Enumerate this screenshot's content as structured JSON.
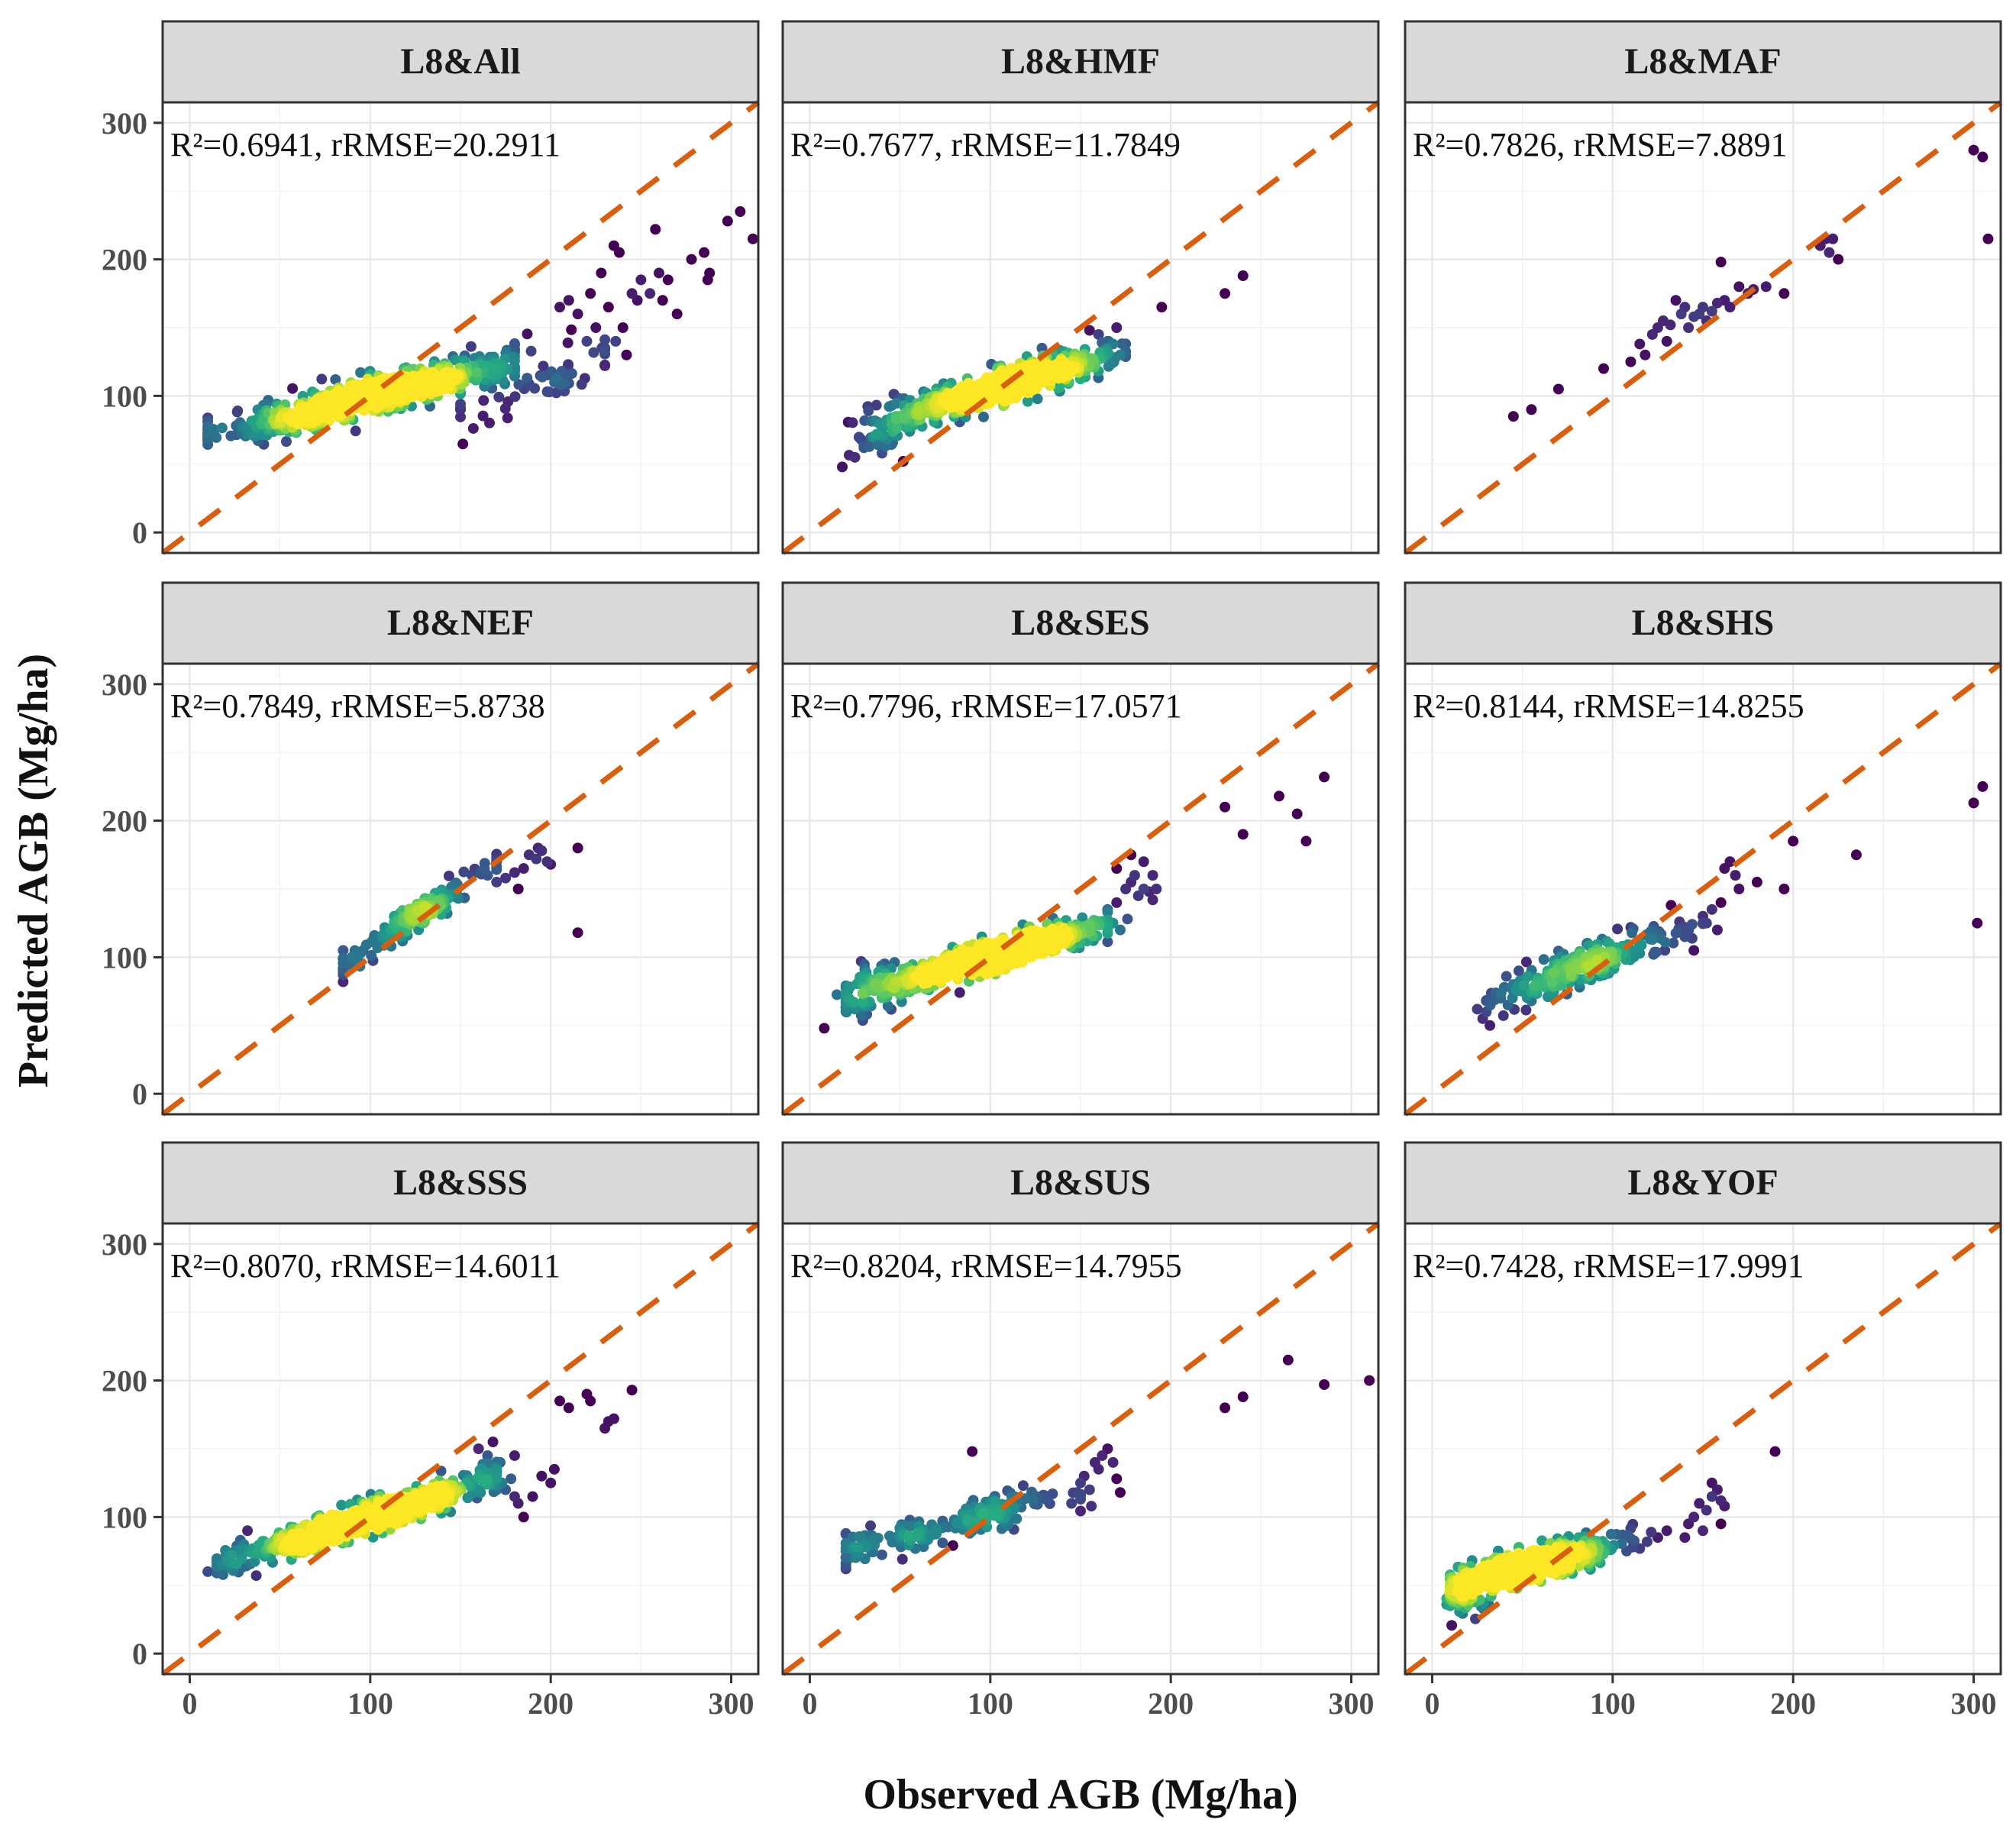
{
  "chart_data": {
    "type": "scatter",
    "xlabel": "Observed AGB (Mg/ha)",
    "ylabel": "Predicted AGB (Mg/ha)",
    "xlim": [
      -15,
      315
    ],
    "ylim": [
      -15,
      315
    ],
    "x_ticks": [
      0,
      100,
      200,
      300
    ],
    "y_ticks": [
      0,
      100,
      200,
      300
    ],
    "grid": true,
    "reference_line": {
      "style": "dashed",
      "color": "#D95F0E",
      "slope": 1,
      "intercept": 0
    },
    "colormap": "viridis (point density)",
    "panels": [
      {
        "title": "L8&All",
        "annotation": "R²=0.6941, rRMSE=20.2911",
        "clusters": [
          {
            "count": 700,
            "cx": 100,
            "cy": 100,
            "sx": 40,
            "slope": 0.33,
            "sy": 7,
            "xmin": 10,
            "xmax": 180
          },
          {
            "count": 70,
            "cx": 190,
            "cy": 115,
            "sx": 25,
            "slope": 0.4,
            "sy": 14,
            "xmin": 150,
            "xmax": 230
          }
        ],
        "points": [
          [
            220,
            140
          ],
          [
            225,
            150
          ],
          [
            230,
            135
          ],
          [
            236,
            140
          ],
          [
            240,
            150
          ],
          [
            232,
            165
          ],
          [
            245,
            175
          ],
          [
            248,
            170
          ],
          [
            250,
            185
          ],
          [
            255,
            175
          ],
          [
            260,
            190
          ],
          [
            265,
            185
          ],
          [
            228,
            190
          ],
          [
            235,
            210
          ],
          [
            238,
            205
          ],
          [
            258,
            222
          ],
          [
            262,
            170
          ],
          [
            285,
            205
          ],
          [
            288,
            190
          ],
          [
            287,
            185
          ],
          [
            298,
            228
          ],
          [
            305,
            235
          ],
          [
            312,
            215
          ],
          [
            270,
            160
          ],
          [
            278,
            200
          ],
          [
            215,
            160
          ],
          [
            222,
            175
          ],
          [
            205,
            165
          ],
          [
            210,
            170
          ],
          [
            242,
            130
          ]
        ]
      },
      {
        "title": "L8&HMF",
        "annotation": "R²=0.7677, rRMSE=11.7849",
        "clusters": [
          {
            "count": 600,
            "cx": 110,
            "cy": 108,
            "sx": 28,
            "slope": 0.38,
            "sy": 6,
            "xmin": 25,
            "xmax": 175
          },
          {
            "count": 60,
            "cx": 45,
            "cy": 80,
            "sx": 12,
            "slope": 0.4,
            "sy": 10,
            "xmin": 20,
            "xmax": 70
          }
        ],
        "points": [
          [
            18,
            48
          ],
          [
            25,
            55
          ],
          [
            30,
            62
          ],
          [
            40,
            58
          ],
          [
            35,
            70
          ],
          [
            45,
            65
          ],
          [
            195,
            165
          ],
          [
            230,
            175
          ],
          [
            240,
            188
          ],
          [
            160,
            145
          ],
          [
            165,
            140
          ],
          [
            170,
            150
          ],
          [
            172,
            130
          ],
          [
            168,
            138
          ],
          [
            155,
            148
          ]
        ]
      },
      {
        "title": "L8&MAF",
        "annotation": "R²=0.7826, rRMSE=7.8891",
        "clusters": [],
        "points": [
          [
            45,
            85
          ],
          [
            55,
            90
          ],
          [
            70,
            105
          ],
          [
            95,
            120
          ],
          [
            110,
            125
          ],
          [
            115,
            138
          ],
          [
            118,
            130
          ],
          [
            122,
            145
          ],
          [
            125,
            150
          ],
          [
            128,
            155
          ],
          [
            130,
            140
          ],
          [
            132,
            152
          ],
          [
            135,
            170
          ],
          [
            138,
            160
          ],
          [
            140,
            165
          ],
          [
            142,
            150
          ],
          [
            145,
            158
          ],
          [
            148,
            160
          ],
          [
            150,
            165
          ],
          [
            152,
            155
          ],
          [
            155,
            162
          ],
          [
            158,
            168
          ],
          [
            160,
            198
          ],
          [
            162,
            170
          ],
          [
            165,
            165
          ],
          [
            170,
            180
          ],
          [
            175,
            175
          ],
          [
            178,
            178
          ],
          [
            185,
            180
          ],
          [
            195,
            175
          ],
          [
            215,
            210
          ],
          [
            218,
            215
          ],
          [
            220,
            205
          ],
          [
            222,
            215
          ],
          [
            225,
            200
          ],
          [
            300,
            280
          ],
          [
            305,
            275
          ],
          [
            308,
            215
          ]
        ]
      },
      {
        "title": "L8&NEF",
        "annotation": "R²=0.7849, rRMSE=5.8738",
        "clusters": [
          {
            "count": 160,
            "cx": 125,
            "cy": 130,
            "sx": 22,
            "slope": 0.85,
            "sy": 5,
            "xmin": 85,
            "xmax": 170
          }
        ],
        "points": [
          [
            175,
            158
          ],
          [
            180,
            162
          ],
          [
            185,
            165
          ],
          [
            188,
            175
          ],
          [
            192,
            172
          ],
          [
            195,
            178
          ],
          [
            198,
            170
          ],
          [
            200,
            168
          ],
          [
            193,
            180
          ],
          [
            182,
            150
          ],
          [
            215,
            180
          ],
          [
            215,
            118
          ],
          [
            170,
            155
          ],
          [
            165,
            160
          ]
        ]
      },
      {
        "title": "L8&SES",
        "annotation": "R²=0.7796, rRMSE=17.0571",
        "clusters": [
          {
            "count": 650,
            "cx": 100,
            "cy": 100,
            "sx": 35,
            "slope": 0.38,
            "sy": 6,
            "xmin": 20,
            "xmax": 165
          },
          {
            "count": 60,
            "cx": 40,
            "cy": 80,
            "sx": 12,
            "slope": 0.4,
            "sy": 10,
            "xmin": 15,
            "xmax": 70
          }
        ],
        "points": [
          [
            8,
            48
          ],
          [
            20,
            60
          ],
          [
            25,
            62
          ],
          [
            30,
            65
          ],
          [
            165,
            135
          ],
          [
            168,
            125
          ],
          [
            170,
            140
          ],
          [
            172,
            120
          ],
          [
            175,
            150
          ],
          [
            178,
            155
          ],
          [
            180,
            160
          ],
          [
            182,
            145
          ],
          [
            185,
            150
          ],
          [
            188,
            148
          ],
          [
            190,
            142
          ],
          [
            178,
            175
          ],
          [
            185,
            170
          ],
          [
            190,
            160
          ],
          [
            192,
            150
          ],
          [
            230,
            210
          ],
          [
            240,
            190
          ],
          [
            260,
            218
          ],
          [
            270,
            205
          ],
          [
            275,
            185
          ],
          [
            285,
            232
          ],
          [
            170,
            165
          ],
          [
            176,
            128
          ]
        ]
      },
      {
        "title": "L8&SHS",
        "annotation": "R²=0.8144, rRMSE=14.8255",
        "clusters": [
          {
            "count": 220,
            "cx": 85,
            "cy": 95,
            "sx": 25,
            "slope": 0.5,
            "sy": 7,
            "xmin": 30,
            "xmax": 150
          }
        ],
        "points": [
          [
            25,
            62
          ],
          [
            28,
            55
          ],
          [
            30,
            68
          ],
          [
            32,
            50
          ],
          [
            35,
            72
          ],
          [
            38,
            70
          ],
          [
            40,
            78
          ],
          [
            42,
            65
          ],
          [
            45,
            80
          ],
          [
            48,
            90
          ],
          [
            50,
            75
          ],
          [
            55,
            68
          ],
          [
            58,
            82
          ],
          [
            150,
            130
          ],
          [
            152,
            125
          ],
          [
            155,
            135
          ],
          [
            158,
            120
          ],
          [
            160,
            140
          ],
          [
            162,
            165
          ],
          [
            165,
            170
          ],
          [
            168,
            160
          ],
          [
            170,
            150
          ],
          [
            180,
            155
          ],
          [
            195,
            150
          ],
          [
            200,
            185
          ],
          [
            235,
            175
          ],
          [
            300,
            213
          ],
          [
            305,
            225
          ],
          [
            302,
            125
          ],
          [
            140,
            115
          ],
          [
            145,
            105
          ]
        ]
      },
      {
        "title": "L8&SSS",
        "annotation": "R²=0.8070, rRMSE=14.6011",
        "clusters": [
          {
            "count": 650,
            "cx": 95,
            "cy": 98,
            "sx": 35,
            "slope": 0.4,
            "sy": 6,
            "xmin": 15,
            "xmax": 170
          }
        ],
        "points": [
          [
            10,
            60
          ],
          [
            18,
            65
          ],
          [
            20,
            72
          ],
          [
            25,
            75
          ],
          [
            30,
            80
          ],
          [
            32,
            90
          ],
          [
            160,
            150
          ],
          [
            165,
            145
          ],
          [
            170,
            135
          ],
          [
            172,
            140
          ],
          [
            175,
            120
          ],
          [
            178,
            128
          ],
          [
            180,
            115
          ],
          [
            182,
            110
          ],
          [
            185,
            100
          ],
          [
            190,
            115
          ],
          [
            195,
            130
          ],
          [
            200,
            125
          ],
          [
            205,
            185
          ],
          [
            210,
            180
          ],
          [
            220,
            190
          ],
          [
            222,
            185
          ],
          [
            230,
            165
          ],
          [
            232,
            170
          ],
          [
            235,
            172
          ],
          [
            245,
            193
          ],
          [
            180,
            145
          ],
          [
            168,
            155
          ],
          [
            173,
            125
          ],
          [
            202,
            135
          ]
        ]
      },
      {
        "title": "L8&SUS",
        "annotation": "R²=0.8204, rRMSE=14.7955",
        "clusters": [
          {
            "count": 170,
            "cx": 80,
            "cy": 95,
            "sx": 35,
            "slope": 0.32,
            "sy": 6,
            "xmin": 20,
            "xmax": 150
          }
        ],
        "points": [
          [
            20,
            62
          ],
          [
            22,
            70
          ],
          [
            25,
            78
          ],
          [
            28,
            85
          ],
          [
            30,
            80
          ],
          [
            90,
            148
          ],
          [
            150,
            125
          ],
          [
            152,
            130
          ],
          [
            155,
            120
          ],
          [
            158,
            140
          ],
          [
            160,
            135
          ],
          [
            162,
            145
          ],
          [
            165,
            150
          ],
          [
            168,
            140
          ],
          [
            170,
            128
          ],
          [
            172,
            118
          ],
          [
            230,
            180
          ],
          [
            240,
            188
          ],
          [
            265,
            215
          ],
          [
            285,
            197
          ],
          [
            310,
            200
          ],
          [
            145,
            110
          ],
          [
            148,
            118
          ],
          [
            156,
            108
          ]
        ]
      },
      {
        "title": "L8&YOF",
        "annotation": "R²=0.7428, rRMSE=17.9991",
        "clusters": [
          {
            "count": 500,
            "cx": 55,
            "cy": 65,
            "sx": 25,
            "slope": 0.35,
            "sy": 6,
            "xmin": 10,
            "xmax": 130
          },
          {
            "count": 50,
            "cx": 20,
            "cy": 45,
            "sx": 6,
            "slope": 0.3,
            "sy": 8,
            "xmin": 8,
            "xmax": 35
          }
        ],
        "points": [
          [
            10,
            35
          ],
          [
            12,
            40
          ],
          [
            15,
            48
          ],
          [
            18,
            42
          ],
          [
            20,
            50
          ],
          [
            140,
            85
          ],
          [
            142,
            95
          ],
          [
            145,
            100
          ],
          [
            148,
            110
          ],
          [
            150,
            90
          ],
          [
            152,
            105
          ],
          [
            155,
            115
          ],
          [
            158,
            120
          ],
          [
            160,
            112
          ],
          [
            162,
            108
          ],
          [
            155,
            125
          ],
          [
            160,
            95
          ],
          [
            190,
            148
          ],
          [
            125,
            85
          ],
          [
            130,
            90
          ]
        ]
      }
    ]
  }
}
